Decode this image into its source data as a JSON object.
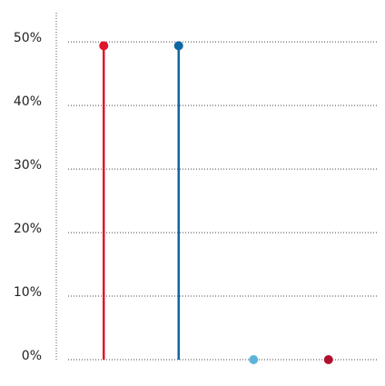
{
  "chart_data": {
    "type": "lollipop",
    "categories": [
      null,
      null,
      null,
      null
    ],
    "values": [
      49.4,
      49.4,
      0,
      0
    ],
    "colors": [
      "#e0162b",
      "#0f67a3",
      "#5bb5d9",
      "#b0102e"
    ],
    "ylim": [
      0,
      54.6
    ],
    "yticks": [
      {
        "value": 0,
        "label": "0%"
      },
      {
        "value": 10,
        "label": "10%"
      },
      {
        "value": 20,
        "label": "20%"
      },
      {
        "value": 30,
        "label": "30%"
      },
      {
        "value": 40,
        "label": "40%"
      },
      {
        "value": 50,
        "label": "50%"
      }
    ],
    "grid": true
  }
}
